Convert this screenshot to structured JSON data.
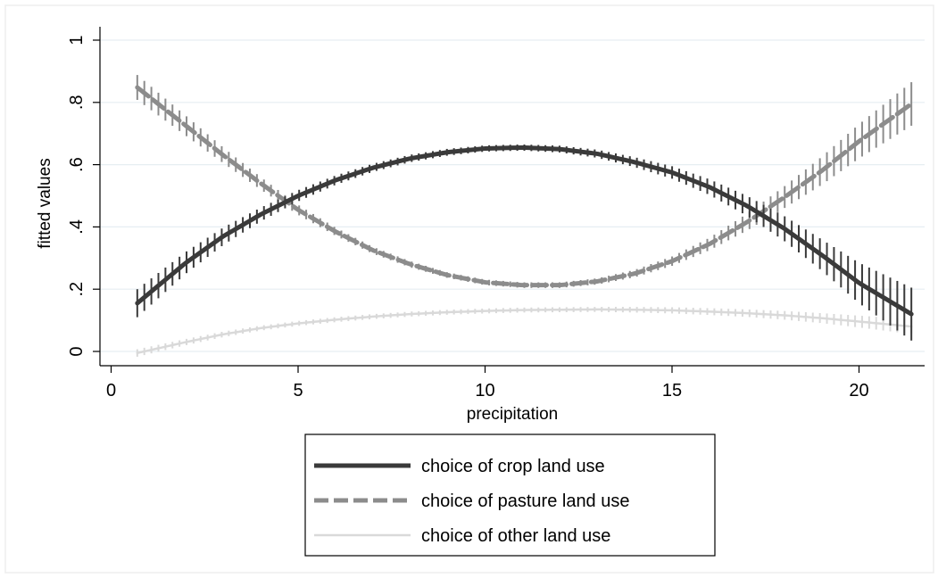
{
  "chart_data": {
    "type": "line",
    "title": "",
    "xlabel": "precipitation",
    "ylabel": "fitted values",
    "xlim": [
      0,
      21.6
    ],
    "ylim": [
      0,
      1
    ],
    "x_ticks": [
      0,
      5,
      10,
      15,
      20
    ],
    "x_tick_labels": [
      "0",
      "5",
      "10",
      "15",
      "20"
    ],
    "y_ticks": [
      0,
      0.2,
      0.4,
      0.6,
      0.8,
      1
    ],
    "y_tick_labels": [
      "0",
      ".2",
      ".4",
      ".6",
      ".8",
      "1"
    ],
    "grid": "horizontal",
    "legend_position": "bottom",
    "x": [
      0.7,
      2,
      3,
      4,
      5,
      6,
      7,
      8,
      9,
      10,
      11,
      12,
      13,
      14,
      15,
      16,
      17,
      18,
      19,
      20,
      21.4
    ],
    "series": [
      {
        "name": "choice of crop land use",
        "style": "solid",
        "color": "#3a3a3a",
        "values": [
          0.155,
          0.285,
          0.37,
          0.44,
          0.5,
          0.55,
          0.59,
          0.62,
          0.64,
          0.652,
          0.655,
          0.65,
          0.635,
          0.608,
          0.575,
          0.528,
          0.468,
          0.395,
          0.31,
          0.22,
          0.12
        ],
        "ci_half_widths": [
          0.045,
          0.035,
          0.028,
          0.022,
          0.018,
          0.015,
          0.013,
          0.012,
          0.011,
          0.01,
          0.01,
          0.011,
          0.013,
          0.016,
          0.02,
          0.025,
          0.032,
          0.04,
          0.05,
          0.065,
          0.085
        ]
      },
      {
        "name": "choice of pasture land use",
        "style": "dashed",
        "color": "#8c8c8c",
        "values": [
          0.848,
          0.725,
          0.63,
          0.54,
          0.455,
          0.385,
          0.325,
          0.28,
          0.245,
          0.222,
          0.213,
          0.213,
          0.225,
          0.25,
          0.29,
          0.345,
          0.415,
          0.495,
          0.58,
          0.675,
          0.795
        ],
        "ci_half_widths": [
          0.04,
          0.032,
          0.025,
          0.02,
          0.016,
          0.013,
          0.011,
          0.01,
          0.009,
          0.009,
          0.009,
          0.009,
          0.01,
          0.012,
          0.015,
          0.02,
          0.027,
          0.035,
          0.045,
          0.055,
          0.07
        ]
      },
      {
        "name": "choice of other land use",
        "style": "solid",
        "color": "#d9d9d9",
        "values": [
          -0.005,
          0.03,
          0.055,
          0.075,
          0.09,
          0.102,
          0.112,
          0.12,
          0.126,
          0.13,
          0.133,
          0.134,
          0.135,
          0.134,
          0.132,
          0.128,
          0.123,
          0.116,
          0.107,
          0.096,
          0.08
        ],
        "ci_half_widths": [
          0.012,
          0.01,
          0.009,
          0.008,
          0.008,
          0.008,
          0.008,
          0.008,
          0.008,
          0.008,
          0.008,
          0.008,
          0.008,
          0.009,
          0.01,
          0.011,
          0.012,
          0.014,
          0.016,
          0.019,
          0.024
        ]
      }
    ]
  }
}
